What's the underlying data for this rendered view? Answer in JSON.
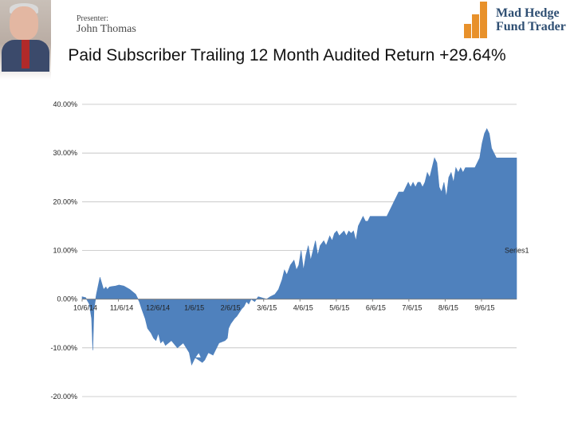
{
  "header": {
    "presenter_label": "Presenter:",
    "presenter_name": "John Thomas",
    "brand_line1": "Mad Hedge",
    "brand_line2": "Fund Trader",
    "brand_color": "#2f4f73",
    "brand_accent": "#e8912b"
  },
  "title": "Paid Subscriber Trailing 12 Month Audited Return +29.64%",
  "chart_data": {
    "type": "area",
    "title": "Paid Subscriber Trailing 12 Month Audited Return +29.64%",
    "xlabel": "",
    "ylabel": "",
    "ylim": [
      -0.2,
      0.4
    ],
    "y_ticks": [
      "40.00%",
      "30.00%",
      "20.00%",
      "10.00%",
      "0.00%",
      "-10.00%",
      "-20.00%"
    ],
    "y_tick_values": [
      0.4,
      0.3,
      0.2,
      0.1,
      0.0,
      -0.1,
      -0.2
    ],
    "x_ticks": [
      "10/6/14",
      "11/6/14",
      "12/6/14",
      "1/6/15",
      "2/6/15",
      "3/6/15",
      "4/6/15",
      "5/6/15",
      "6/6/15",
      "7/6/15",
      "8/6/15",
      "9/6/15"
    ],
    "x_range_days": [
      0,
      365
    ],
    "grid": true,
    "legend_position": "right",
    "color": "#4f81bd",
    "series": [
      {
        "name": "Series1",
        "x": [
          0,
          3,
          6,
          8,
          9,
          10,
          12,
          15,
          18,
          20,
          21,
          22,
          23,
          25,
          28,
          31,
          35,
          40,
          45,
          48,
          50,
          53,
          55,
          58,
          60,
          62,
          64,
          66,
          68,
          70,
          75,
          80,
          85,
          90,
          92,
          95,
          98,
          100,
          95,
          101,
          103,
          106,
          110,
          115,
          120,
          122,
          123,
          125,
          128,
          130,
          134,
          136,
          138,
          140,
          142,
          145,
          148,
          152,
          155,
          158,
          162,
          165,
          168,
          170,
          172,
          175,
          178,
          180,
          182,
          184,
          186,
          188,
          190,
          192,
          194,
          196,
          198,
          200,
          203,
          205,
          208,
          210,
          212,
          214,
          216,
          218,
          220,
          222,
          224,
          226,
          228,
          230,
          232,
          234,
          236,
          238,
          240,
          242,
          244,
          246,
          248,
          250,
          252,
          254,
          256,
          258,
          260,
          262,
          264,
          266,
          268,
          270,
          272,
          274,
          276,
          278,
          280,
          282,
          284,
          286,
          288,
          290,
          292,
          294,
          296,
          298,
          300,
          302,
          304,
          306,
          308,
          310,
          312,
          314,
          316,
          318,
          320,
          322,
          324,
          326,
          328,
          330,
          332,
          334,
          336,
          338,
          340,
          342,
          344,
          346,
          348,
          350,
          352,
          354,
          356,
          358,
          360,
          362,
          363,
          364,
          365
        ],
        "y": [
          0.005,
          0.003,
          -0.01,
          -0.04,
          -0.105,
          -0.02,
          0.01,
          0.045,
          0.02,
          0.025,
          0.02,
          0.022,
          0.025,
          0.026,
          0.027,
          0.029,
          0.027,
          0.02,
          0.01,
          -0.005,
          -0.02,
          -0.04,
          -0.06,
          -0.07,
          -0.08,
          -0.085,
          -0.07,
          -0.09,
          -0.085,
          -0.095,
          -0.085,
          -0.1,
          -0.09,
          -0.11,
          -0.135,
          -0.12,
          -0.11,
          -0.12,
          -0.12,
          -0.13,
          -0.125,
          -0.11,
          -0.115,
          -0.09,
          -0.085,
          -0.08,
          -0.06,
          -0.05,
          -0.04,
          -0.035,
          -0.02,
          -0.015,
          -0.005,
          -0.01,
          0.0,
          -0.005,
          0.005,
          0.002,
          0.0,
          0.005,
          0.01,
          0.02,
          0.04,
          0.06,
          0.05,
          0.07,
          0.08,
          0.06,
          0.07,
          0.1,
          0.06,
          0.09,
          0.11,
          0.08,
          0.1,
          0.12,
          0.09,
          0.11,
          0.12,
          0.11,
          0.13,
          0.12,
          0.135,
          0.14,
          0.13,
          0.135,
          0.14,
          0.13,
          0.14,
          0.135,
          0.14,
          0.12,
          0.15,
          0.16,
          0.17,
          0.16,
          0.16,
          0.17,
          0.17,
          0.17,
          0.17,
          0.17,
          0.17,
          0.17,
          0.17,
          0.18,
          0.19,
          0.2,
          0.21,
          0.22,
          0.22,
          0.22,
          0.23,
          0.24,
          0.23,
          0.24,
          0.23,
          0.24,
          0.24,
          0.23,
          0.24,
          0.26,
          0.25,
          0.27,
          0.29,
          0.28,
          0.23,
          0.22,
          0.24,
          0.21,
          0.25,
          0.26,
          0.24,
          0.27,
          0.26,
          0.27,
          0.26,
          0.27,
          0.27,
          0.27,
          0.27,
          0.27,
          0.28,
          0.29,
          0.32,
          0.34,
          0.35,
          0.34,
          0.31,
          0.3,
          0.29,
          0.29,
          0.29,
          0.29,
          0.29,
          0.29,
          0.29,
          0.29,
          0.29,
          0.29,
          0.29
        ]
      }
    ]
  }
}
